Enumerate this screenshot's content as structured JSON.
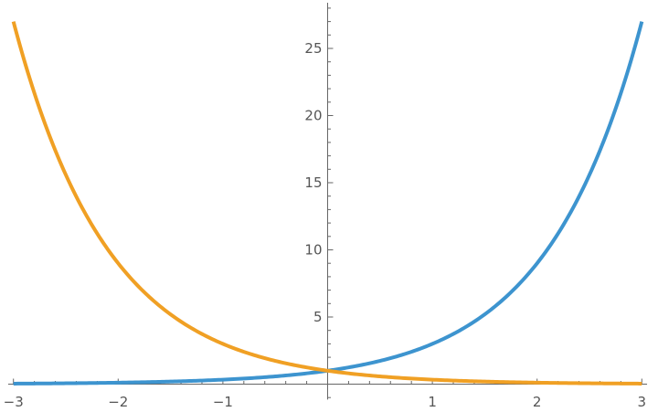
{
  "chart_data": {
    "type": "line",
    "title": "",
    "xlabel": "",
    "ylabel": "",
    "xlim": [
      -3,
      3
    ],
    "ylim": [
      0,
      27
    ],
    "grid": false,
    "x_ticks": [
      -3,
      -2,
      -1,
      1,
      2,
      3
    ],
    "x_tick_labels": [
      "−3",
      "−2",
      "−1",
      "1",
      "2",
      "3"
    ],
    "y_ticks": [
      5,
      10,
      15,
      20,
      25
    ],
    "y_tick_labels": [
      "5",
      "10",
      "15",
      "20",
      "25"
    ],
    "series": [
      {
        "function": "3^x",
        "color": "#3D94CF",
        "x": [
          -3,
          -2.5,
          -2,
          -1.5,
          -1,
          -0.5,
          0,
          0.5,
          1,
          1.5,
          2,
          2.5,
          3
        ],
        "values": [
          0.037,
          0.064,
          0.111,
          0.192,
          0.333,
          0.577,
          1,
          1.732,
          3,
          5.196,
          9,
          15.59,
          27
        ]
      },
      {
        "function": "3^-x",
        "color": "#F0A024",
        "x": [
          -3,
          -2.5,
          -2,
          -1.5,
          -1,
          -0.5,
          0,
          0.5,
          1,
          1.5,
          2,
          2.5,
          3
        ],
        "values": [
          27,
          15.59,
          9,
          5.196,
          3,
          1.732,
          1,
          0.577,
          0.333,
          0.192,
          0.111,
          0.064,
          0.037
        ]
      }
    ]
  }
}
